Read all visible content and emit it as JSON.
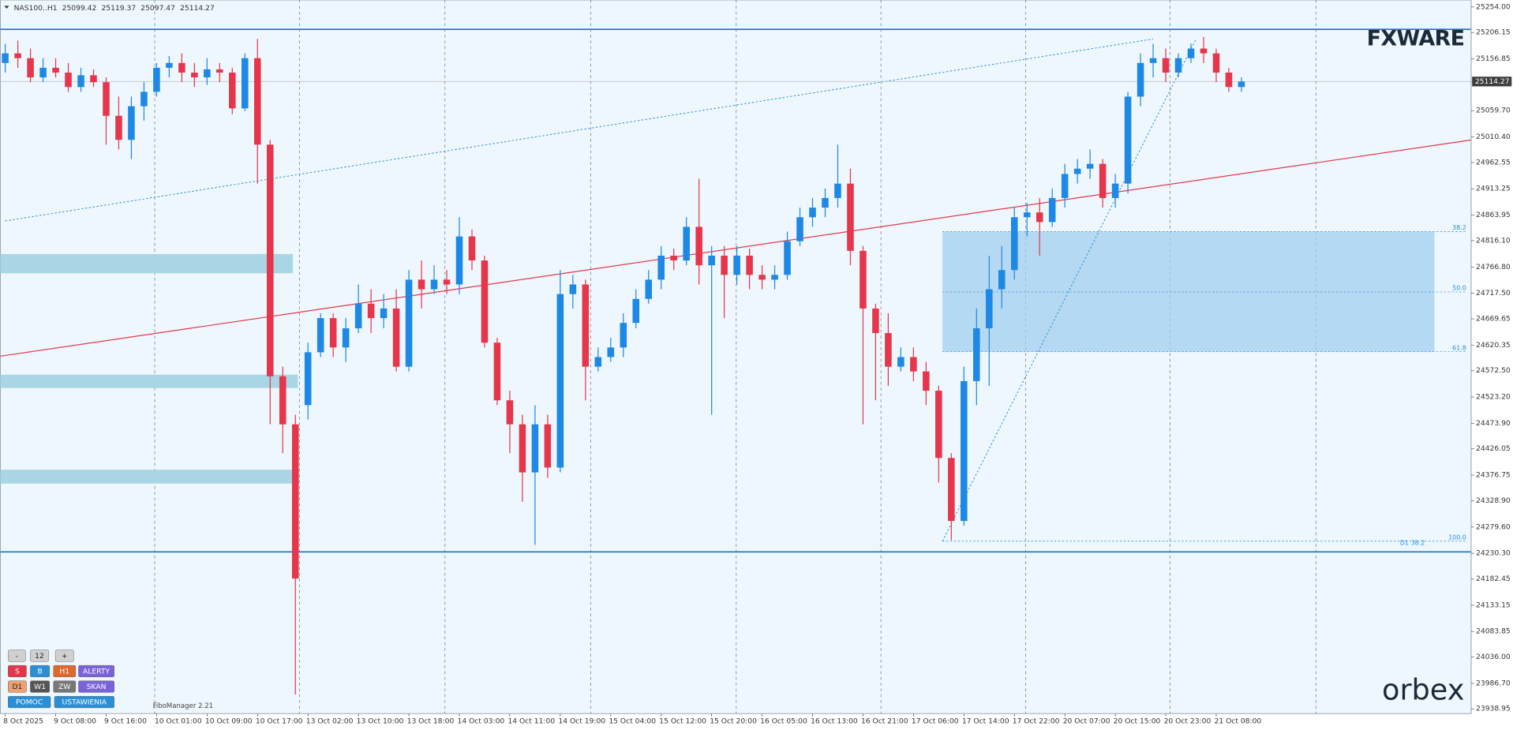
{
  "chart_data": {
    "type": "candlestick",
    "symbol": "NAS100..H1",
    "header_ohlc": [
      25099.42,
      25119.37,
      25097.47,
      25114.27
    ],
    "up_color": "#1e88e5",
    "down_color": "#e5364b",
    "categories": [
      "8 Oct 2025",
      null,
      null,
      null,
      "9 Oct 08:00",
      null,
      null,
      null,
      "9 Oct 16:00",
      null,
      null,
      null,
      "10 Oct 01:00",
      null,
      null,
      null,
      "10 Oct 09:00",
      null,
      null,
      null,
      "10 Oct 17:00",
      null,
      null,
      null,
      "13 Oct 02:00",
      null,
      null,
      null,
      "13 Oct 10:00",
      null,
      null,
      null,
      "13 Oct 18:00",
      null,
      null,
      null,
      "14 Oct 03:00",
      null,
      null,
      null,
      "14 Oct 11:00",
      null,
      null,
      null,
      "14 Oct 19:00",
      null,
      null,
      null,
      "15 Oct 04:00",
      null,
      null,
      null,
      "15 Oct 12:00",
      null,
      null,
      null,
      "15 Oct 20:00",
      null,
      null,
      null,
      "16 Oct 05:00",
      null,
      null,
      null,
      "16 Oct 13:00",
      null,
      null,
      null,
      "16 Oct 21:00",
      null,
      null,
      null,
      "17 Oct 06:00",
      null,
      null,
      null,
      "17 Oct 14:00",
      null,
      null,
      null,
      "17 Oct 22:00",
      null,
      null,
      null,
      "20 Oct 07:00",
      null,
      null,
      null,
      "20 Oct 15:00",
      null,
      null,
      null,
      "20 Oct 23:00",
      null,
      null,
      null,
      "21 Oct 08:00",
      null,
      null
    ],
    "candles": [
      [
        25149,
        25185,
        25131,
        25167
      ],
      [
        25167,
        25191,
        25140,
        25158
      ],
      [
        25158,
        25176,
        25113,
        25122
      ],
      [
        25122,
        25158,
        25113,
        25140
      ],
      [
        25140,
        25158,
        25122,
        25131
      ],
      [
        25131,
        25149,
        25095,
        25104
      ],
      [
        25104,
        25140,
        25095,
        25126
      ],
      [
        25126,
        25137,
        25104,
        25113
      ],
      [
        25113,
        25122,
        24996,
        25050
      ],
      [
        25050,
        25086,
        24987,
        25005
      ],
      [
        25005,
        25086,
        24969,
        25068
      ],
      [
        25068,
        25113,
        25041,
        25095
      ],
      [
        25095,
        25149,
        25086,
        25140
      ],
      [
        25140,
        25162,
        25122,
        25149
      ],
      [
        25149,
        25167,
        25113,
        25131
      ],
      [
        25131,
        25149,
        25104,
        25122
      ],
      [
        25122,
        25158,
        25108,
        25137
      ],
      [
        25137,
        25149,
        25113,
        25131
      ],
      [
        25131,
        25140,
        25053,
        25064
      ],
      [
        25064,
        25167,
        25059,
        25158
      ],
      [
        25158,
        25194,
        24923,
        24996
      ],
      [
        24996,
        25005,
        24472,
        24562
      ],
      [
        24562,
        24580,
        24418,
        24472
      ],
      [
        24472,
        24490,
        23966,
        24183
      ],
      [
        24508,
        24625,
        24481,
        24607
      ],
      [
        24607,
        24680,
        24598,
        24671
      ],
      [
        24671,
        24680,
        24598,
        24616
      ],
      [
        24616,
        24671,
        24589,
        24652
      ],
      [
        24652,
        24734,
        24643,
        24698
      ],
      [
        24698,
        24725,
        24643,
        24671
      ],
      [
        24671,
        24716,
        24652,
        24689
      ],
      [
        24689,
        24725,
        24571,
        24580
      ],
      [
        24580,
        24761,
        24571,
        24743
      ],
      [
        24743,
        24779,
        24689,
        24725
      ],
      [
        24725,
        24770,
        24716,
        24743
      ],
      [
        24743,
        24761,
        24716,
        24734
      ],
      [
        24734,
        24860,
        24716,
        24824
      ],
      [
        24824,
        24837,
        24761,
        24779
      ],
      [
        24779,
        24788,
        24616,
        24625
      ],
      [
        24625,
        24634,
        24508,
        24517
      ],
      [
        24517,
        24535,
        24418,
        24472
      ],
      [
        24472,
        24490,
        24327,
        24382
      ],
      [
        24382,
        24508,
        24246,
        24472
      ],
      [
        24472,
        24490,
        24372,
        24391
      ],
      [
        24391,
        24761,
        24382,
        24716
      ],
      [
        24716,
        24752,
        24689,
        24734
      ],
      [
        24734,
        24743,
        24517,
        24580
      ],
      [
        24580,
        24616,
        24571,
        24598
      ],
      [
        24598,
        24634,
        24589,
        24616
      ],
      [
        24616,
        24680,
        24598,
        24662
      ],
      [
        24662,
        24725,
        24652,
        24707
      ],
      [
        24707,
        24761,
        24698,
        24743
      ],
      [
        24743,
        24806,
        24725,
        24788
      ],
      [
        24788,
        24801,
        24761,
        24779
      ],
      [
        24779,
        24860,
        24770,
        24842
      ],
      [
        24842,
        24932,
        24734,
        24770
      ],
      [
        24770,
        24806,
        24490,
        24788
      ],
      [
        24788,
        24806,
        24671,
        24752
      ],
      [
        24752,
        24806,
        24734,
        24788
      ],
      [
        24788,
        24801,
        24725,
        24752
      ],
      [
        24752,
        24770,
        24725,
        24743
      ],
      [
        24743,
        24770,
        24725,
        24752
      ],
      [
        24752,
        24833,
        24743,
        24815
      ],
      [
        24815,
        24878,
        24806,
        24860
      ],
      [
        24860,
        24896,
        24842,
        24878
      ],
      [
        24878,
        24914,
        24860,
        24896
      ],
      [
        24896,
        24996,
        24878,
        24923
      ],
      [
        24923,
        24951,
        24770,
        24797
      ],
      [
        24797,
        24806,
        24472,
        24689
      ],
      [
        24689,
        24698,
        24517,
        24643
      ],
      [
        24643,
        24680,
        24544,
        24580
      ],
      [
        24580,
        24616,
        24571,
        24598
      ],
      [
        24598,
        24616,
        24553,
        24571
      ],
      [
        24571,
        24589,
        24508,
        24535
      ],
      [
        24535,
        24544,
        24363,
        24409
      ],
      [
        24409,
        24418,
        24255,
        24291
      ],
      [
        24291,
        24580,
        24282,
        24553
      ],
      [
        24553,
        24689,
        24508,
        24652
      ],
      [
        24652,
        24788,
        24544,
        24725
      ],
      [
        24725,
        24806,
        24689,
        24761
      ],
      [
        24761,
        24878,
        24743,
        24860
      ],
      [
        24860,
        24887,
        24824,
        24869
      ],
      [
        24869,
        24896,
        24788,
        24851
      ],
      [
        24851,
        24914,
        24842,
        24896
      ],
      [
        24896,
        24960,
        24878,
        24941
      ],
      [
        24941,
        24969,
        24923,
        24951
      ],
      [
        24951,
        24987,
        24932,
        24960
      ],
      [
        24960,
        24969,
        24878,
        24896
      ],
      [
        24896,
        24941,
        24878,
        24923
      ],
      [
        24923,
        25095,
        24905,
        25086
      ],
      [
        25086,
        25167,
        25068,
        25149
      ],
      [
        25149,
        25185,
        25122,
        25158
      ],
      [
        25158,
        25176,
        25113,
        25131
      ],
      [
        25131,
        25167,
        25122,
        25158
      ],
      [
        25158,
        25185,
        25149,
        25176
      ],
      [
        25176,
        25198,
        25149,
        25167
      ],
      [
        25167,
        25176,
        25113,
        25131
      ],
      [
        25131,
        25140,
        25095,
        25104
      ],
      [
        25104,
        25122,
        25095,
        25114.27
      ]
    ],
    "ylim": [
      23930,
      25267
    ],
    "yticks": [
      {
        "value": 25254,
        "label": "25254.00"
      },
      25206.15,
      25156.85,
      {
        "value": 25059.7,
        "label": "25059.70"
      },
      {
        "value": 25010.4,
        "label": "25010.40"
      },
      24962.55,
      24913.25,
      24863.95,
      {
        "value": 24816.1,
        "label": "24816.10"
      },
      {
        "value": 24766.8,
        "label": "24766.80"
      },
      {
        "value": 24717.5,
        "label": "24717.50"
      },
      24669.65,
      24620.35,
      {
        "value": 24572.5,
        "label": "24572.50"
      },
      {
        "value": 24523.2,
        "label": "24523.20"
      },
      {
        "value": 24473.9,
        "label": "24473.90"
      },
      24426.05,
      24376.75,
      {
        "value": 24328.9,
        "label": "24328.90"
      },
      {
        "value": 24279.6,
        "label": "24279.60"
      },
      {
        "value": 24230.3,
        "label": "24230.30"
      },
      24182.45,
      24133.15,
      24083.85,
      {
        "value": 24036,
        "label": "24036.00"
      },
      {
        "value": 23986.7,
        "label": "23986.70"
      },
      23938.95
    ],
    "vgrid": [
      11.85,
      23.32,
      34.86,
      46.41,
      57.95,
      69.42,
      80.89,
      92.35,
      103.9
    ],
    "levels": [
      25212,
      24233
    ],
    "level_color": "#1e6fd0",
    "trendlines": [
      {
        "color": "#e5364b",
        "style": "solid",
        "points": [
          [
            0,
            24601
          ],
          [
            116,
            25004
          ]
        ]
      },
      {
        "color": "#2a8fd6",
        "style": "dotted",
        "points": [
          [
            0,
            24853
          ],
          [
            91,
            25194
          ]
        ]
      },
      {
        "color": "#2a8fd6",
        "style": "dotted",
        "points": [
          [
            74.3,
            24253
          ],
          [
            94.4,
            25194
          ]
        ]
      }
    ],
    "zones": [
      {
        "from": 24755,
        "to": 24791,
        "end": 22.8
      },
      {
        "from": 24540,
        "to": 24565,
        "end": 23.2
      },
      {
        "from": 24361,
        "to": 24387,
        "end": 23.3
      }
    ],
    "zone_color": "#a9d6e5",
    "fib": {
      "start": 74.3,
      "end": 113.3,
      "color": "#a2cfee",
      "labels": [
        "38.2",
        "50.0",
        "61.8",
        "100.0"
      ],
      "prices": [
        24833,
        24720,
        24608,
        24253
      ],
      "tag": "D1 38.2"
    }
  },
  "logo_top": "FXWARE",
  "logo_bottom": "orbex",
  "indicator": "FiboManager 2.21",
  "panel": [
    [
      "-",
      "12",
      "+"
    ],
    [
      "S",
      "B",
      "H1",
      "ALERTY"
    ],
    [
      "D1",
      "W1",
      "ZW",
      "SKAN"
    ],
    [
      "POMOC",
      "USTAWIENIA"
    ]
  ]
}
